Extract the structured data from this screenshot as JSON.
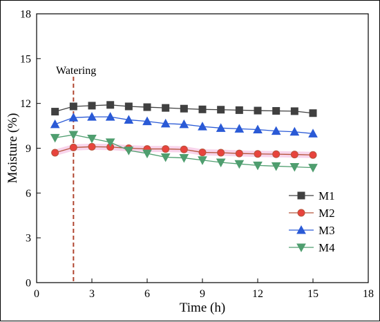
{
  "chart_data": {
    "type": "line",
    "title": "",
    "xlabel": "Time (h)",
    "ylabel": "Moisture (%)",
    "xlim": [
      0,
      18
    ],
    "ylim": [
      0,
      18
    ],
    "xticks": [
      0,
      3,
      6,
      9,
      12,
      15,
      18
    ],
    "yticks": [
      0,
      3,
      6,
      9,
      12,
      15,
      18
    ],
    "grid": false,
    "legend_position": "right",
    "x": [
      1,
      2,
      3,
      4,
      5,
      6,
      7,
      8,
      9,
      10,
      11,
      12,
      13,
      14,
      15
    ],
    "series": [
      {
        "name": "M1",
        "color": "#404040",
        "marker": "square",
        "values": [
          11.45,
          11.8,
          11.85,
          11.9,
          11.8,
          11.75,
          11.7,
          11.65,
          11.6,
          11.58,
          11.55,
          11.52,
          11.5,
          11.48,
          11.35
        ]
      },
      {
        "name": "M2",
        "color": "#b5533a",
        "marker": "circle",
        "values": [
          8.7,
          9.05,
          9.1,
          9.08,
          9.0,
          8.95,
          8.95,
          8.92,
          8.72,
          8.7,
          8.65,
          8.62,
          8.6,
          8.58,
          8.55
        ]
      },
      {
        "name": "M3",
        "color": "#2a5ad6",
        "marker": "triangle-up",
        "values": [
          10.6,
          11.05,
          11.1,
          11.1,
          10.9,
          10.8,
          10.65,
          10.6,
          10.45,
          10.35,
          10.3,
          10.25,
          10.15,
          10.1,
          9.98
        ]
      },
      {
        "name": "M4",
        "color": "#4f9e6f",
        "marker": "triangle-down",
        "values": [
          9.7,
          9.9,
          9.65,
          9.4,
          8.85,
          8.65,
          8.4,
          8.35,
          8.2,
          8.05,
          7.95,
          7.85,
          7.8,
          7.75,
          7.7
        ]
      }
    ],
    "annotations": [
      {
        "text": "Watering",
        "x": 2,
        "line_color": "#b0452f",
        "line_style": "dashed"
      }
    ]
  }
}
